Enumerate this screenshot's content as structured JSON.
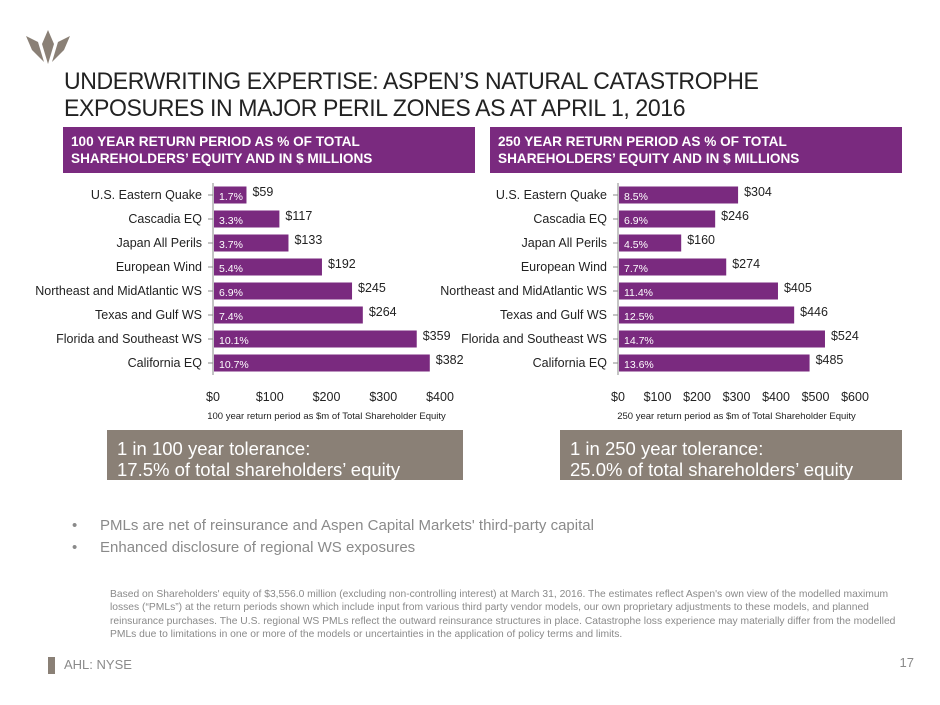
{
  "slide": {
    "title_line1": "UNDERWRITING EXPERTISE: ASPEN’S NATURAL CATASTROPHE",
    "title_line2": "EXPOSURES IN MAJOR PERIL ZONES AS AT APRIL 1, 2016",
    "logo_icon": "aspen-logo-icon",
    "accent_color": "#7a2a7f",
    "tolerance_color": "#8a8076",
    "page_number": "17",
    "ticker": "AHL: NYSE"
  },
  "panels": {
    "left": {
      "heading_line1": "100 YEAR RETURN PERIOD AS % OF TOTAL",
      "heading_line2": "SHAREHOLDERS’ EQUITY AND IN $ MILLIONS",
      "tolerance_line1": "1 in 100 year tolerance:",
      "tolerance_line2": "17.5% of total shareholders’ equity"
    },
    "right": {
      "heading_line1": "250 YEAR RETURN PERIOD AS % OF TOTAL",
      "heading_line2": "SHAREHOLDERS’ EQUITY AND IN $ MILLIONS",
      "tolerance_line1": "1 in 250 year tolerance:",
      "tolerance_line2": "25.0% of total shareholders’ equity"
    }
  },
  "bullets": [
    "PMLs are net of reinsurance and Aspen Capital Markets' third-party capital",
    "Enhanced disclosure of regional WS exposures"
  ],
  "footnote": "Based on Shareholders' equity of $3,556.0 million (excluding non-controlling interest) at March 31, 2016. The estimates reflect Aspen's own view of the modelled maximum losses (“PMLs”) at the return periods shown which include input from various third party vendor models, our own proprietary adjustments to these models, and planned reinsurance purchases. The U.S. regional WS PMLs reflect the outward reinsurance structures in place. Catastrophe loss experience may materially differ from the modelled PMLs due to limitations in one or more of the models or uncertainties in the application of policy terms and limits.",
  "chart_data": [
    {
      "type": "bar",
      "orientation": "horizontal",
      "title": "100 YEAR RETURN PERIOD AS % OF TOTAL SHAREHOLDERS’ EQUITY AND IN $ MILLIONS",
      "xlabel": "100 year return period as $m of Total Shareholder Equity",
      "ylabel": "",
      "categories": [
        "U.S. Eastern Quake",
        "Cascadia EQ",
        "Japan All Perils",
        "European Wind",
        "Northeast and MidAtlantic WS",
        "Texas and Gulf WS",
        "Florida and Southeast WS",
        "California EQ"
      ],
      "values": [
        59,
        117,
        133,
        192,
        245,
        264,
        359,
        382
      ],
      "value_labels": [
        "$59",
        "$117",
        "$133",
        "$192",
        "$245",
        "$264",
        "$359",
        "$382"
      ],
      "percent_labels": [
        "1.7%",
        "3.3%",
        "3.7%",
        "5.4%",
        "6.9%",
        "7.4%",
        "10.1%",
        "10.7%"
      ],
      "xlim": [
        0,
        400
      ],
      "xticks": [
        0,
        100,
        200,
        300,
        400
      ],
      "xtick_labels": [
        "$0",
        "$100",
        "$200",
        "$300",
        "$400"
      ],
      "grid": false,
      "bar_color": "#7a2a7f"
    },
    {
      "type": "bar",
      "orientation": "horizontal",
      "title": "250 YEAR RETURN PERIOD AS % OF TOTAL SHAREHOLDERS’ EQUITY AND IN $ MILLIONS",
      "xlabel": "250 year return period as $m of Total Shareholder Equity",
      "ylabel": "",
      "categories": [
        "U.S. Eastern Quake",
        "Cascadia EQ",
        "Japan All Perils",
        "European Wind",
        "Northeast and MidAtlantic WS",
        "Texas and Gulf WS",
        "Florida and Southeast WS",
        "California EQ"
      ],
      "values": [
        304,
        246,
        160,
        274,
        405,
        446,
        524,
        485
      ],
      "value_labels": [
        "$304",
        "$246",
        "$160",
        "$274",
        "$405",
        "$446",
        "$524",
        "$485"
      ],
      "percent_labels": [
        "8.5%",
        "6.9%",
        "4.5%",
        "7.7%",
        "11.4%",
        "12.5%",
        "14.7%",
        "13.6%"
      ],
      "xlim": [
        0,
        600
      ],
      "xticks": [
        0,
        100,
        200,
        300,
        400,
        500,
        600
      ],
      "xtick_labels": [
        "$0",
        "$100",
        "$200",
        "$300",
        "$400",
        "$500",
        "$600"
      ],
      "grid": false,
      "bar_color": "#7a2a7f"
    }
  ]
}
